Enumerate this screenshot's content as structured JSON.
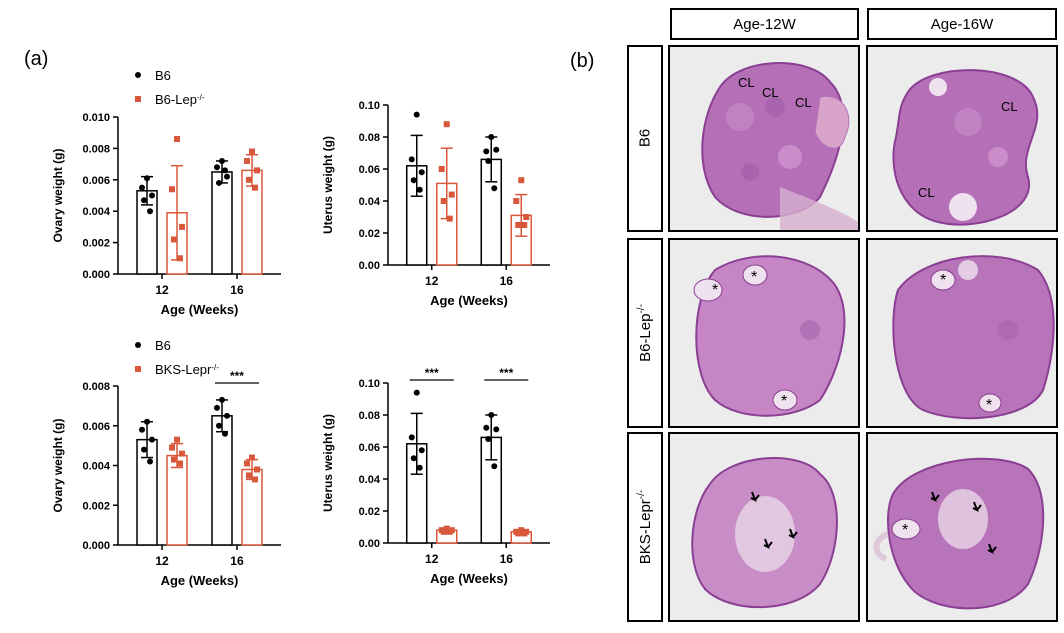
{
  "panel_a_label": "(a)",
  "panel_b_label": "(b)",
  "colors": {
    "control": "#000000",
    "mutant": "#d9583b"
  },
  "chart_data": [
    {
      "type": "bar",
      "id": "ovary-top",
      "ylabel": "Ovary weight (g)",
      "xlabel": "Age (Weeks)",
      "categories": [
        "12",
        "16"
      ],
      "ylim": [
        0,
        0.01
      ],
      "yticks": [
        "0.000",
        "0.002",
        "0.004",
        "0.006",
        "0.008",
        "0.010"
      ],
      "legend": [
        "B6",
        "B6-Lep-/-"
      ],
      "legend_display": [
        {
          "text": "B6",
          "sup": ""
        },
        {
          "text": "B6-Lep",
          "sup": "-/-"
        }
      ],
      "series": [
        {
          "name": "B6",
          "values": [
            0.0053,
            0.0065
          ],
          "err": [
            0.0009,
            0.0007
          ],
          "points": [
            [
              0.0061,
              0.0055,
              0.005,
              0.0047,
              0.004
            ],
            [
              0.0072,
              0.0068,
              0.0062,
              0.0058,
              0.0066
            ]
          ]
        },
        {
          "name": "B6-Lep-/-",
          "values": [
            0.0039,
            0.0066
          ],
          "err": [
            0.003,
            0.001
          ],
          "points": [
            [
              0.0086,
              0.0054,
              0.003,
              0.0022,
              0.001
            ],
            [
              0.0078,
              0.0072,
              0.0066,
              0.006,
              0.0055
            ]
          ]
        }
      ],
      "significance": []
    },
    {
      "type": "bar",
      "id": "uterus-top",
      "ylabel": "Uterus weight (g)",
      "xlabel": "Age (Weeks)",
      "categories": [
        "12",
        "16"
      ],
      "ylim": [
        0,
        0.1
      ],
      "yticks": [
        "0.00",
        "0.02",
        "0.04",
        "0.06",
        "0.08",
        "0.10"
      ],
      "legend": [],
      "legend_display": [],
      "series": [
        {
          "name": "B6",
          "values": [
            0.062,
            0.066
          ],
          "err": [
            0.019,
            0.014
          ],
          "points": [
            [
              0.094,
              0.066,
              0.058,
              0.053,
              0.047
            ],
            [
              0.08,
              0.071,
              0.072,
              0.065,
              0.048
            ]
          ]
        },
        {
          "name": "B6-Lep-/-",
          "values": [
            0.051,
            0.031
          ],
          "err": [
            0.022,
            0.013
          ],
          "points": [
            [
              0.088,
              0.06,
              0.044,
              0.04,
              0.029
            ],
            [
              0.053,
              0.04,
              0.03,
              0.025,
              0.025
            ]
          ]
        }
      ],
      "significance": []
    },
    {
      "type": "bar",
      "id": "ovary-bottom",
      "ylabel": "Ovary weight (g)",
      "xlabel": "Age (Weeks)",
      "categories": [
        "12",
        "16"
      ],
      "ylim": [
        0,
        0.008
      ],
      "yticks": [
        "0.000",
        "0.002",
        "0.004",
        "0.006",
        "0.008"
      ],
      "legend": [
        "B6",
        "BKS-Lepr-/-"
      ],
      "legend_display": [
        {
          "text": "B6",
          "sup": ""
        },
        {
          "text": "BKS-Lepr",
          "sup": "-/-"
        }
      ],
      "series": [
        {
          "name": "B6",
          "values": [
            0.0053,
            0.0065
          ],
          "err": [
            0.0009,
            0.0008
          ],
          "points": [
            [
              0.0062,
              0.0058,
              0.0053,
              0.0048,
              0.0042
            ],
            [
              0.0073,
              0.0069,
              0.0065,
              0.006,
              0.0056
            ]
          ]
        },
        {
          "name": "BKS-Lepr-/-",
          "values": [
            0.0045,
            0.0038
          ],
          "err": [
            0.0006,
            0.0005
          ],
          "points": [
            [
              0.0053,
              0.0049,
              0.0046,
              0.0043,
              0.0041
            ],
            [
              0.0044,
              0.0041,
              0.0038,
              0.0035,
              0.0033
            ]
          ]
        }
      ],
      "significance": [
        {
          "category_index": 1,
          "label": "***"
        }
      ]
    },
    {
      "type": "bar",
      "id": "uterus-bottom",
      "ylabel": "Uterus weight (g)",
      "xlabel": "Age (Weeks)",
      "categories": [
        "12",
        "16"
      ],
      "ylim": [
        0,
        0.1
      ],
      "yticks": [
        "0.00",
        "0.02",
        "0.04",
        "0.06",
        "0.08",
        "0.10"
      ],
      "legend": [],
      "legend_display": [],
      "series": [
        {
          "name": "B6",
          "values": [
            0.062,
            0.066
          ],
          "err": [
            0.019,
            0.014
          ],
          "points": [
            [
              0.094,
              0.066,
              0.058,
              0.053,
              0.047
            ],
            [
              0.08,
              0.072,
              0.071,
              0.065,
              0.048
            ]
          ]
        },
        {
          "name": "BKS-Lepr-/-",
          "values": [
            0.008,
            0.007
          ],
          "err": [
            0.001,
            0.001
          ],
          "points": [
            [
              0.009,
              0.008,
              0.008,
              0.007,
              0.007
            ],
            [
              0.008,
              0.007,
              0.007,
              0.006,
              0.006
            ]
          ]
        }
      ],
      "significance": [
        {
          "category_index": 0,
          "label": "***"
        },
        {
          "category_index": 1,
          "label": "***"
        }
      ]
    }
  ],
  "histology": {
    "columns": [
      "Age-12W",
      "Age-16W"
    ],
    "rows": [
      {
        "label": "B6",
        "sup": ""
      },
      {
        "label": "B6-Lep",
        "sup": "-/-"
      },
      {
        "label": "BKS-Lepr",
        "sup": "-/-"
      }
    ],
    "annotations": {
      "cl": "CL",
      "star": "*"
    }
  }
}
